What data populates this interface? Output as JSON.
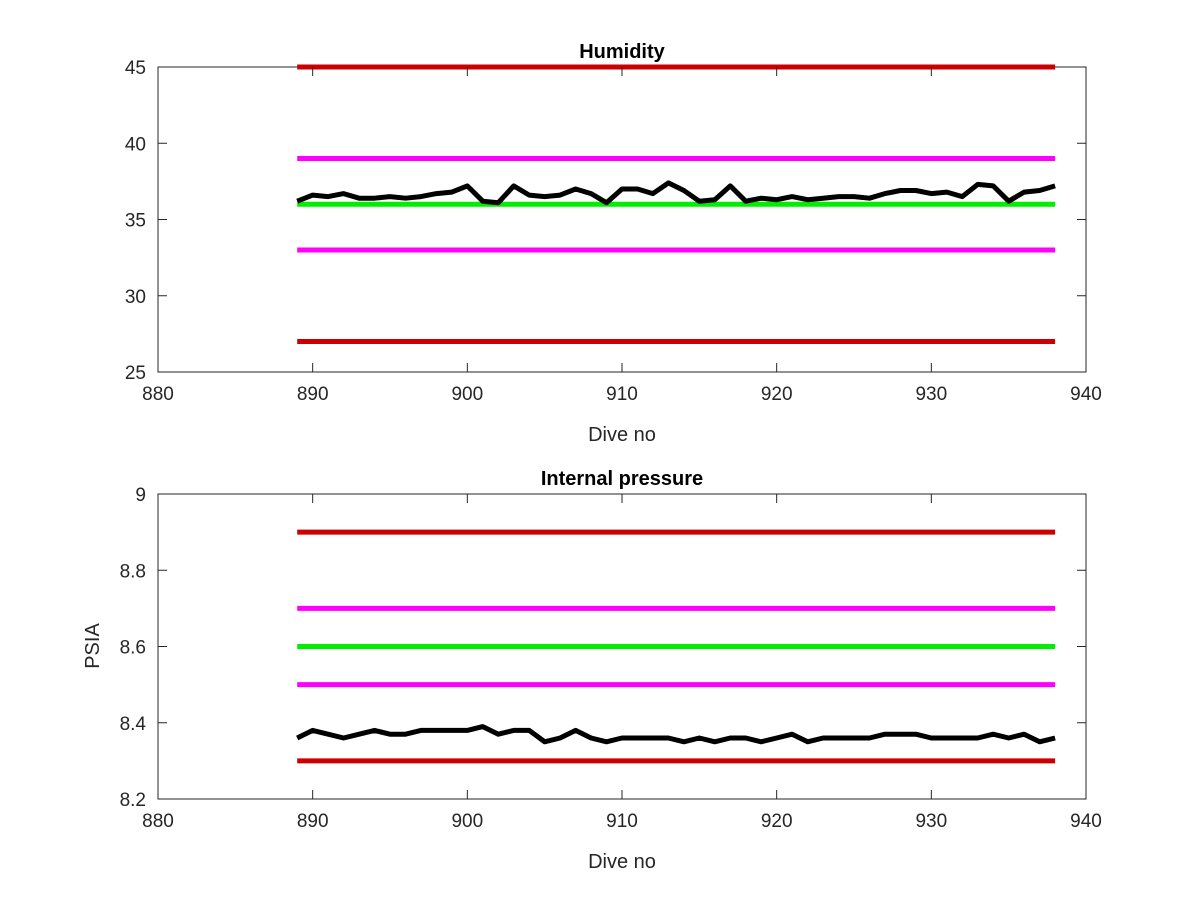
{
  "chart_data": [
    {
      "type": "line",
      "title": "Humidity",
      "xlabel": "Dive no",
      "ylabel": "",
      "xlim": [
        880,
        940
      ],
      "ylim": [
        25,
        45
      ],
      "xticks": [
        "880",
        "890",
        "900",
        "910",
        "920",
        "930",
        "940"
      ],
      "yticks": [
        "25",
        "30",
        "35",
        "40",
        "45"
      ],
      "grid": false,
      "series": [
        {
          "color": "#cc0000",
          "x": [
            889,
            938
          ],
          "y": [
            45,
            45
          ]
        },
        {
          "color": "#ff00ff",
          "x": [
            889,
            938
          ],
          "y": [
            39,
            39
          ]
        },
        {
          "color": "#00ee00",
          "x": [
            889,
            938
          ],
          "y": [
            36,
            36
          ]
        },
        {
          "color": "#ff00ff",
          "x": [
            889,
            938
          ],
          "y": [
            33,
            33
          ]
        },
        {
          "color": "#cc0000",
          "x": [
            889,
            938
          ],
          "y": [
            27,
            27
          ]
        },
        {
          "color": "#000000",
          "x": [
            889,
            890,
            891,
            892,
            893,
            894,
            895,
            896,
            897,
            898,
            899,
            900,
            901,
            902,
            903,
            904,
            905,
            906,
            907,
            908,
            909,
            910,
            911,
            912,
            913,
            914,
            915,
            916,
            917,
            918,
            919,
            920,
            921,
            922,
            923,
            924,
            925,
            926,
            927,
            928,
            929,
            930,
            931,
            932,
            933,
            934,
            935,
            936,
            937,
            938
          ],
          "y": [
            36.2,
            36.6,
            36.5,
            36.7,
            36.4,
            36.4,
            36.5,
            36.4,
            36.5,
            36.7,
            36.8,
            37.2,
            36.2,
            36.1,
            37.2,
            36.6,
            36.5,
            36.6,
            37.0,
            36.7,
            36.1,
            37.0,
            37.0,
            36.7,
            37.4,
            36.9,
            36.2,
            36.3,
            37.2,
            36.2,
            36.4,
            36.3,
            36.5,
            36.3,
            36.4,
            36.5,
            36.5,
            36.4,
            36.7,
            36.9,
            36.9,
            36.7,
            36.8,
            36.5,
            37.3,
            37.2,
            36.2,
            36.8,
            36.9,
            37.2
          ]
        }
      ]
    },
    {
      "type": "line",
      "title": "Internal pressure",
      "xlabel": "Dive no",
      "ylabel": "PSIA",
      "xlim": [
        880,
        940
      ],
      "ylim": [
        8.2,
        9
      ],
      "xticks": [
        "880",
        "890",
        "900",
        "910",
        "920",
        "930",
        "940"
      ],
      "yticks": [
        "8.2",
        "8.4",
        "8.6",
        "8.8",
        "9"
      ],
      "grid": false,
      "series": [
        {
          "color": "#cc0000",
          "x": [
            889,
            938
          ],
          "y": [
            8.9,
            8.9
          ]
        },
        {
          "color": "#ff00ff",
          "x": [
            889,
            938
          ],
          "y": [
            8.7,
            8.7
          ]
        },
        {
          "color": "#00ee00",
          "x": [
            889,
            938
          ],
          "y": [
            8.6,
            8.6
          ]
        },
        {
          "color": "#ff00ff",
          "x": [
            889,
            938
          ],
          "y": [
            8.5,
            8.5
          ]
        },
        {
          "color": "#cc0000",
          "x": [
            889,
            938
          ],
          "y": [
            8.3,
            8.3
          ]
        },
        {
          "color": "#000000",
          "x": [
            889,
            890,
            891,
            892,
            893,
            894,
            895,
            896,
            897,
            898,
            899,
            900,
            901,
            902,
            903,
            904,
            905,
            906,
            907,
            908,
            909,
            910,
            911,
            912,
            913,
            914,
            915,
            916,
            917,
            918,
            919,
            920,
            921,
            922,
            923,
            924,
            925,
            926,
            927,
            928,
            929,
            930,
            931,
            932,
            933,
            934,
            935,
            936,
            937,
            938
          ],
          "y": [
            8.36,
            8.38,
            8.37,
            8.36,
            8.37,
            8.38,
            8.37,
            8.37,
            8.38,
            8.38,
            8.38,
            8.38,
            8.39,
            8.37,
            8.38,
            8.38,
            8.35,
            8.36,
            8.38,
            8.36,
            8.35,
            8.36,
            8.36,
            8.36,
            8.36,
            8.35,
            8.36,
            8.35,
            8.36,
            8.36,
            8.35,
            8.36,
            8.37,
            8.35,
            8.36,
            8.36,
            8.36,
            8.36,
            8.37,
            8.37,
            8.37,
            8.36,
            8.36,
            8.36,
            8.36,
            8.37,
            8.36,
            8.37,
            8.35,
            8.36
          ]
        }
      ]
    }
  ]
}
